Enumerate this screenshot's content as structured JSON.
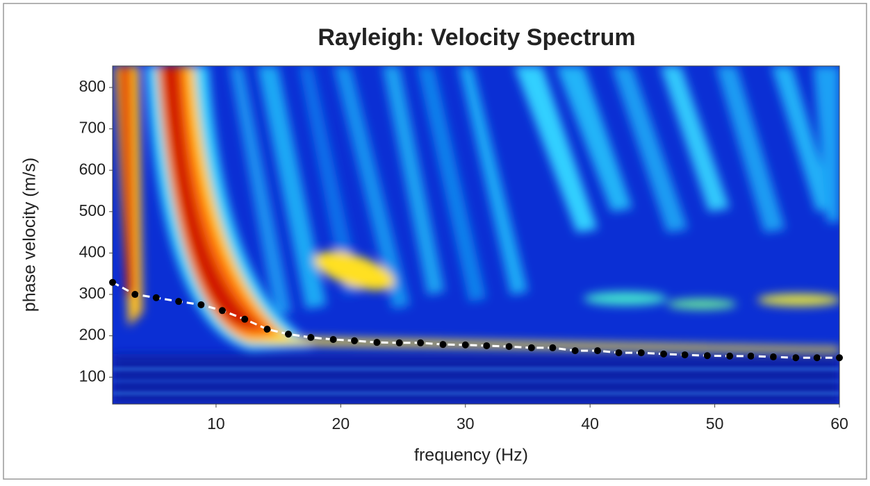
{
  "chart_data": {
    "type": "scatter",
    "title": "Rayleigh: Velocity Spectrum",
    "x_label": "frequency (Hz)",
    "y_label": "phase velocity (m/s)",
    "xlim": [
      1.7,
      60
    ],
    "ylim": [
      35,
      852
    ],
    "xticks": [
      10,
      20,
      30,
      40,
      50,
      60
    ],
    "yticks": [
      100,
      200,
      300,
      400,
      500,
      600,
      700,
      800
    ],
    "series": [
      {
        "color": "#000000",
        "line_color": "#ffffff",
        "x": [
          1.7,
          3.5,
          5.2,
          7.0,
          8.8,
          10.5,
          12.3,
          14.1,
          15.8,
          17.6,
          19.4,
          21.1,
          22.9,
          24.7,
          26.4,
          28.2,
          30.0,
          31.7,
          33.5,
          35.3,
          37.0,
          38.8,
          40.6,
          42.3,
          44.1,
          45.9,
          47.6,
          49.4,
          51.2,
          52.9,
          54.7,
          56.5,
          58.2,
          60.0
        ],
        "values": [
          329,
          300,
          292,
          283,
          275,
          261,
          240,
          216,
          204,
          196,
          191,
          188,
          184,
          183,
          183,
          179,
          178,
          176,
          174,
          171,
          171,
          164,
          164,
          159,
          159,
          156,
          154,
          152,
          151,
          151,
          149,
          147,
          147,
          147
        ]
      }
    ]
  }
}
